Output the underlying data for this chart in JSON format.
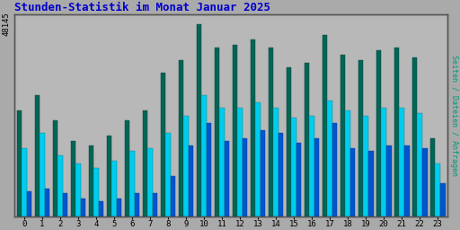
{
  "title": "Stunden-Statistik im Monat Januar 2025",
  "title_color": "#0000cc",
  "ylabel_right": "Seiten / Dateien / Anfragen",
  "ylabel_right_color": "#009977",
  "background_color": "#aaaaaa",
  "plot_bg_color": "#b8b8b8",
  "hours": [
    0,
    1,
    2,
    3,
    4,
    5,
    6,
    7,
    8,
    9,
    10,
    11,
    12,
    13,
    14,
    15,
    16,
    17,
    18,
    19,
    20,
    21,
    22,
    23
  ],
  "seiten": [
    42,
    48,
    38,
    30,
    28,
    32,
    38,
    42,
    57,
    62,
    76,
    67,
    68,
    70,
    67,
    59,
    61,
    72,
    64,
    62,
    66,
    67,
    63,
    31
  ],
  "dateien": [
    27,
    33,
    24,
    21,
    19,
    22,
    26,
    27,
    33,
    40,
    48,
    43,
    43,
    45,
    43,
    39,
    40,
    46,
    42,
    40,
    43,
    43,
    41,
    21
  ],
  "anfragen": [
    10,
    11,
    9,
    7,
    6,
    7,
    9,
    9,
    16,
    28,
    37,
    30,
    31,
    34,
    33,
    29,
    31,
    37,
    27,
    26,
    28,
    28,
    27,
    13
  ],
  "color_seiten": "#006655",
  "color_dateien": "#00ccee",
  "color_anfragen": "#0055cc",
  "bar_width": 0.28,
  "grid_color": "#999999",
  "border_color": "#555555",
  "ymax": 80,
  "ytick_val": 80,
  "ytick_label": "48145",
  "font_family": "monospace",
  "figsize": [
    5.12,
    2.56
  ],
  "dpi": 100
}
